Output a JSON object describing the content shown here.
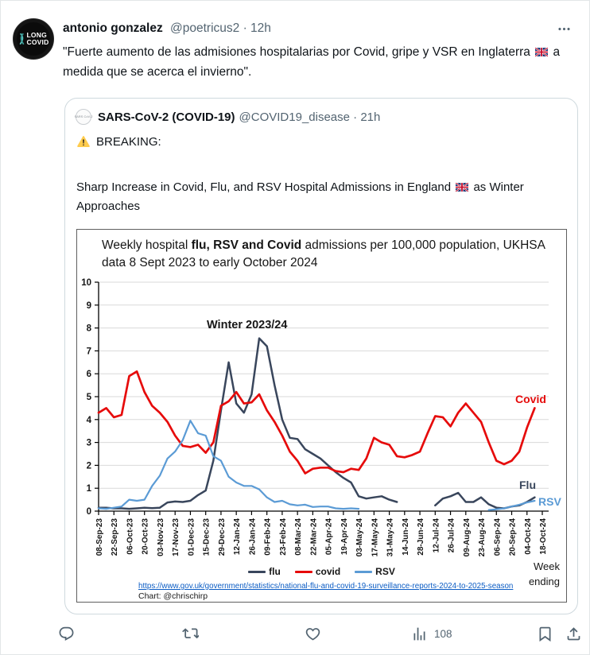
{
  "tweet": {
    "author": "antonio gonzalez",
    "meta": "@poetricus2 · 12h",
    "text_part1": "\"Fuerte aumento de las admisiones hospitalarias por Covid, gripe y VSR en Inglaterra",
    "text_part2": "a medida que se acerca el invierno\".",
    "avatar": {
      "line1": "LONG",
      "line2": "COVID"
    }
  },
  "quote": {
    "author": "SARS-CoV-2 (COVID-19)",
    "meta": "@COVID19_disease · 21h",
    "breaking": "BREAKING:",
    "body_part1": "Sharp Increase in Covid, Flu, and RSV Hospital Admissions in England",
    "body_part2": "as Winter Approaches"
  },
  "actions": {
    "views_count": "108",
    "reply_icon": "speech-bubble",
    "retweet_icon": "retweet-arrows",
    "like_icon": "heart-outline",
    "views_icon": "bar-chart",
    "bookmark_icon": "bookmark-outline",
    "share_icon": "share-upload",
    "more_icon": "ellipsis"
  },
  "colors": {
    "flu_navy": "#39465c",
    "covid_red": "#e60b0b",
    "rsv_blue": "#5b9bd5",
    "link_blue": "#0b5cc4",
    "icon_gray": "#536471"
  },
  "chart_data": {
    "type": "line",
    "title_plain1": "Weekly hospital ",
    "title_bold": "flu, RSV and Covid",
    "title_plain2": " admissions per 100,000 population, UKHSA data 8 Sept 2023 to early October 2024",
    "annotation": "Winter 2023/24",
    "x_axis_label": "Week ending",
    "source_link": "https://www.gov.uk/government/statistics/national-flu-and-covid-19-surveillance-reports-2024-to-2025-season",
    "credit": "Chart: @chrischirp",
    "ylim": [
      0,
      10
    ],
    "y_ticks": [
      0,
      1,
      2,
      3,
      4,
      5,
      6,
      7,
      8,
      9,
      10
    ],
    "grid": true,
    "legend_position": "bottom",
    "weeks_per_tick": 2,
    "tick_labels": [
      "08-Sep-23",
      "22-Sep-23",
      "06-Oct-23",
      "20-Oct-23",
      "03-Nov-23",
      "17-Nov-23",
      "01-Dec-23",
      "15-Dec-23",
      "29-Dec-23",
      "12-Jan-24",
      "26-Jan-24",
      "09-Feb-24",
      "23-Feb-24",
      "08-Mar-24",
      "22-Mar-24",
      "05-Apr-24",
      "19-Apr-24",
      "03-May-24",
      "17-May-24",
      "31-May-24",
      "14-Jun-24",
      "28-Jun-24",
      "12-Jul-24",
      "26-Jul-24",
      "09-Aug-24",
      "23-Aug-24",
      "06-Sep-24",
      "20-Sep-24",
      "04-Oct-24",
      "18-Oct-24"
    ],
    "series": [
      {
        "name": "flu",
        "end_label": "Flu",
        "color": "#39465c",
        "values": [
          0.15,
          0.15,
          0.12,
          0.12,
          0.1,
          0.12,
          0.15,
          0.13,
          0.15,
          0.38,
          0.42,
          0.4,
          0.45,
          0.7,
          0.9,
          2.2,
          4.4,
          6.5,
          4.7,
          4.3,
          5.1,
          7.55,
          7.2,
          5.5,
          4.0,
          3.2,
          3.15,
          2.7,
          2.5,
          2.3,
          2.0,
          1.7,
          1.45,
          1.25,
          0.65,
          0.55,
          0.6,
          0.65,
          0.5,
          0.4,
          null,
          null,
          null,
          null,
          0.25,
          0.55,
          0.65,
          0.8,
          0.4,
          0.4,
          0.6,
          0.3,
          0.15,
          0.12,
          0.2,
          0.25,
          0.4,
          0.6
        ]
      },
      {
        "name": "covid",
        "end_label": "Covid",
        "color": "#e60b0b",
        "values": [
          4.3,
          4.5,
          4.1,
          4.2,
          5.9,
          6.1,
          5.2,
          4.6,
          4.3,
          3.9,
          3.3,
          2.85,
          2.8,
          2.9,
          2.55,
          3.0,
          4.6,
          4.8,
          5.2,
          4.7,
          4.75,
          5.1,
          4.4,
          3.9,
          3.3,
          2.6,
          2.2,
          1.65,
          1.85,
          1.9,
          1.9,
          1.75,
          1.7,
          1.85,
          1.8,
          2.3,
          3.2,
          3.0,
          2.9,
          2.4,
          2.35,
          2.45,
          2.6,
          3.4,
          4.15,
          4.1,
          3.7,
          4.3,
          4.7,
          4.3,
          3.9,
          3.0,
          2.2,
          2.05,
          2.2,
          2.6,
          3.65,
          4.5
        ]
      },
      {
        "name": "RSV",
        "end_label": "RSV",
        "color": "#5b9bd5",
        "values": [
          0.12,
          0.1,
          0.15,
          0.2,
          0.5,
          0.45,
          0.5,
          1.1,
          1.55,
          2.3,
          2.6,
          3.1,
          3.95,
          3.4,
          3.3,
          2.4,
          2.2,
          1.5,
          1.25,
          1.1,
          1.1,
          0.95,
          0.6,
          0.4,
          0.45,
          0.3,
          0.25,
          0.28,
          0.18,
          0.2,
          0.2,
          0.12,
          0.1,
          0.12,
          0.1,
          null,
          null,
          null,
          null,
          null,
          null,
          null,
          null,
          null,
          null,
          null,
          null,
          null,
          null,
          null,
          null,
          0.05,
          0.08,
          0.12,
          0.2,
          0.28,
          0.38,
          0.45
        ]
      }
    ]
  }
}
